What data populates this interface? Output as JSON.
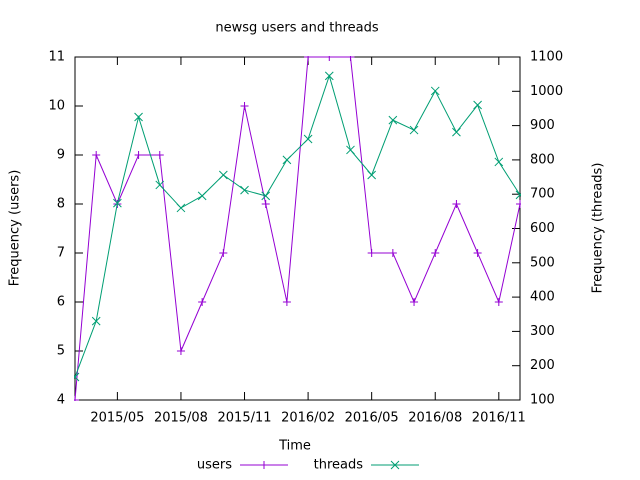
{
  "chart_data": {
    "type": "line",
    "title": "newsg users and threads",
    "xlabel": "Time",
    "ylabel": "Frequency (users)",
    "y2label": "Frequency (threads)",
    "x": [
      "2015/03",
      "2015/04",
      "2015/05",
      "2015/06",
      "2015/07",
      "2015/08",
      "2015/09",
      "2015/10",
      "2015/11",
      "2015/12",
      "2016/01",
      "2016/02",
      "2016/03",
      "2016/04",
      "2016/05",
      "2016/06",
      "2016/07",
      "2016/08",
      "2016/09",
      "2016/10",
      "2016/11",
      "2016/12"
    ],
    "xlim": [
      "2015/03",
      "2016/12"
    ],
    "xticks": [
      "2015/05",
      "2015/08",
      "2015/11",
      "2016/02",
      "2016/05",
      "2016/08",
      "2016/11"
    ],
    "ylim": [
      4,
      11
    ],
    "yticks": [
      4,
      5,
      6,
      7,
      8,
      9,
      10,
      11
    ],
    "y2lim": [
      100,
      1100
    ],
    "y2ticks": [
      100,
      200,
      300,
      400,
      500,
      600,
      700,
      800,
      900,
      1000,
      1100
    ],
    "legend": "bottom",
    "series": [
      {
        "name": "users",
        "color": "#9400d3",
        "marker": "plus",
        "values": [
          4,
          9,
          8,
          9,
          9,
          5,
          6,
          7,
          10,
          8,
          6,
          11,
          11,
          11,
          7,
          7,
          6,
          7,
          8,
          7,
          6,
          8
        ]
      },
      {
        "name": "threads",
        "color": "#009e73",
        "marker": "cross",
        "axis": "y2",
        "values": [
          167,
          330,
          674,
          925,
          727,
          660,
          695,
          756,
          712,
          695,
          800,
          861,
          1045,
          829,
          756,
          916,
          887,
          1001,
          881,
          960,
          794,
          698
        ]
      }
    ]
  }
}
